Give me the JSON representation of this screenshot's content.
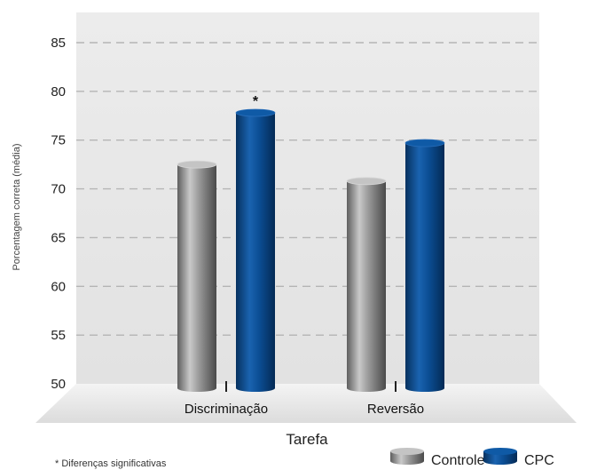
{
  "chart_data": {
    "type": "bar",
    "xlabel": "Tarefa",
    "ylabel": "Porcentagem correta (média)",
    "categories": [
      "Discriminação",
      "Reversão"
    ],
    "series": [
      {
        "name": "Controle",
        "values": [
          72.5,
          70.8
        ],
        "color": "#8a8a8a"
      },
      {
        "name": "CPC",
        "values": [
          77.8,
          74.7
        ],
        "color": "#0a4c91"
      }
    ],
    "ylim": [
      50,
      85
    ],
    "yticks": [
      50,
      55,
      60,
      65,
      70,
      75,
      80,
      85
    ],
    "grid": true,
    "legend_position": "bottom-right",
    "annotations": [
      {
        "text": "*",
        "category": "Discriminação",
        "series": "CPC"
      }
    ],
    "footnote": "* Diferenças significativas"
  }
}
